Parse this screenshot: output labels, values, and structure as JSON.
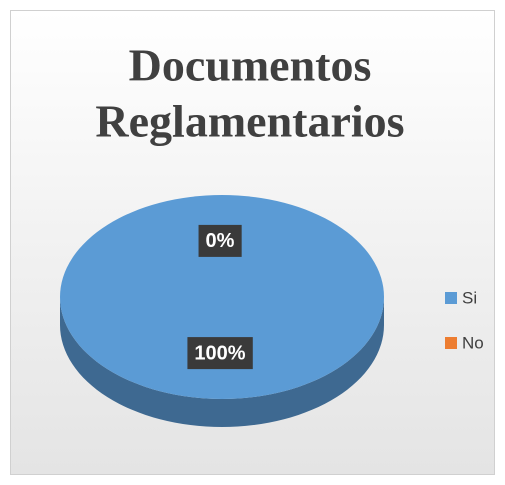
{
  "chart_data": {
    "type": "pie",
    "title": [
      "Documentos",
      "Reglamentarios"
    ],
    "categories": [
      "Si",
      "No"
    ],
    "values": [
      100,
      0
    ],
    "value_labels": [
      "100%",
      "0%"
    ],
    "colors": [
      "#5b9bd5",
      "#ed7d31"
    ],
    "legend": "right"
  }
}
